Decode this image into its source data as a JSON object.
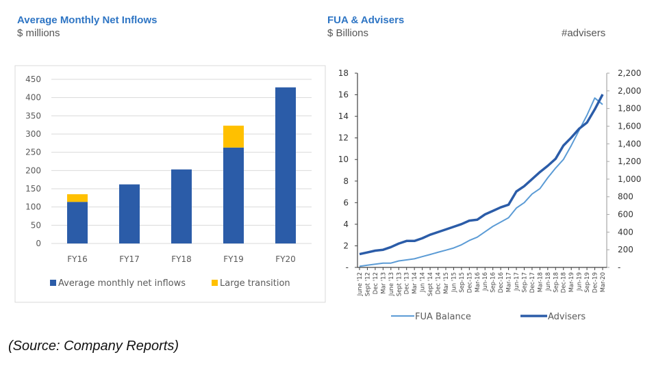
{
  "left_panel": {
    "title": "Average Monthly Net Inflows",
    "subtitle": "$ millions"
  },
  "right_panel": {
    "title": "FUA & Advisers",
    "subtitle": "$ Billions",
    "right_subtitle": "#advisers"
  },
  "source": "(Source: Company Reports)",
  "chart_data": [
    {
      "type": "bar",
      "stacked": true,
      "title": "Average Monthly Net Inflows",
      "ylabel": "$ millions",
      "categories": [
        "FY16",
        "FY17",
        "FY18",
        "FY19",
        "FY20"
      ],
      "series": [
        {
          "name": "Average monthly net inflows",
          "color": "#2b5ca8",
          "values": [
            114,
            162,
            203,
            263,
            428
          ]
        },
        {
          "name": "Large transition",
          "color": "#ffc000",
          "values": [
            21,
            0,
            0,
            60,
            0
          ]
        }
      ],
      "ylim": [
        0,
        450
      ],
      "yticks": [
        "0",
        "50",
        "100",
        "150",
        "200",
        "250",
        "300",
        "350",
        "400",
        "450"
      ],
      "grid": true,
      "legend": "bottom"
    },
    {
      "type": "line",
      "title": "FUA & Advisers",
      "x": [
        "June '12",
        "Sept '12",
        "Dec '12",
        "Mar '13",
        "June '13",
        "Sept '13",
        "Dec '13",
        "Mar '14",
        "Jun '14",
        "Sept '14",
        "Dec '14",
        "Mar '15",
        "Jun '15",
        "Sep-15",
        "Dec-15",
        "Mar-16",
        "Jun-16",
        "Sep-16",
        "Dec-16",
        "Mar-17",
        "Jun-17",
        "Sep-17",
        "Dec-17",
        "Mar-18",
        "Jun-18",
        "Sep-18",
        "Dec-18",
        "Mar-19",
        "Jun-19",
        "Sep-19",
        "Dec-19",
        "Mar-20"
      ],
      "series": [
        {
          "name": "FUA Balance",
          "axis": "left",
          "color": "#5b9bd5",
          "values": [
            0.1,
            0.2,
            0.3,
            0.4,
            0.4,
            0.6,
            0.7,
            0.8,
            1.0,
            1.2,
            1.4,
            1.6,
            1.8,
            2.1,
            2.5,
            2.8,
            3.3,
            3.8,
            4.2,
            4.6,
            5.5,
            6.0,
            6.8,
            7.3,
            8.3,
            9.2,
            10.0,
            11.3,
            12.7,
            14.1,
            15.7,
            15.1
          ]
        },
        {
          "name": "Advisers",
          "axis": "right",
          "color": "#2b5ca8",
          "values": [
            150,
            170,
            190,
            200,
            230,
            270,
            300,
            300,
            330,
            370,
            400,
            430,
            460,
            490,
            530,
            540,
            600,
            640,
            680,
            710,
            860,
            920,
            1000,
            1080,
            1150,
            1230,
            1380,
            1470,
            1570,
            1640,
            1790,
            1960
          ]
        }
      ],
      "ylabel_left": "$ Billions",
      "ylabel_right": "#advisers",
      "ylim_left": [
        0,
        18
      ],
      "ylim_right": [
        0,
        2200
      ],
      "yticks_left": [
        "-",
        "2",
        "4",
        "6",
        "8",
        "10",
        "12",
        "14",
        "16",
        "18"
      ],
      "yticks_right": [
        "-",
        "200",
        "400",
        "600",
        "800",
        "1,000",
        "1,200",
        "1,400",
        "1,600",
        "1,800",
        "2,000",
        "2,200"
      ],
      "grid": false,
      "legend": "bottom"
    }
  ]
}
